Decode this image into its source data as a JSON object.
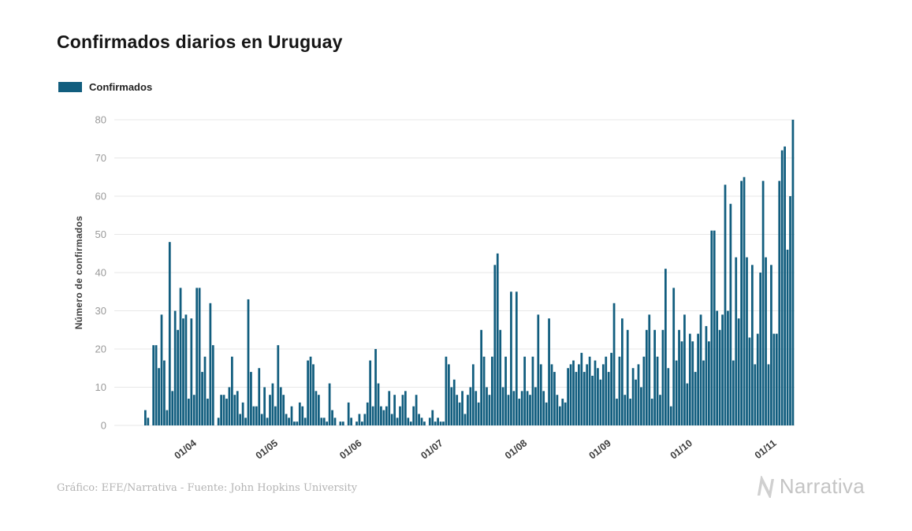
{
  "page": {
    "title": "Confirmados diarios en Uruguay",
    "footer_credit": "Gráfico: EFE/Narrativa - Fuente: John Hopkins University",
    "brand": "Narrativa"
  },
  "legend": {
    "label": "Confirmados",
    "color": "#115d7e"
  },
  "chart_data": {
    "type": "bar",
    "title": "Confirmados diarios en Uruguay",
    "series_name": "Confirmados",
    "ylabel": "Número de confirmados",
    "y_ticks": [
      0,
      10,
      20,
      30,
      40,
      50,
      60,
      70,
      80
    ],
    "ylim": [
      0,
      80
    ],
    "grid": "horizontal",
    "legend_position": "top-left",
    "bar_color": "#115d7e",
    "x_tick_labels": [
      "01/04",
      "01/05",
      "01/06",
      "01/07",
      "01/08",
      "01/09",
      "01/10",
      "01/11"
    ],
    "x_tick_indices": [
      19,
      49,
      80,
      110,
      141,
      172,
      202,
      233
    ],
    "values": [
      4,
      2,
      0,
      21,
      21,
      15,
      29,
      17,
      4,
      48,
      9,
      30,
      25,
      36,
      28,
      29,
      7,
      28,
      8,
      36,
      36,
      14,
      18,
      7,
      32,
      21,
      0,
      2,
      8,
      8,
      7,
      10,
      18,
      8,
      9,
      3,
      6,
      2,
      33,
      14,
      5,
      5,
      15,
      3,
      10,
      2,
      8,
      11,
      5,
      21,
      10,
      8,
      3,
      2,
      5,
      1,
      1,
      6,
      5,
      2,
      17,
      18,
      16,
      9,
      8,
      2,
      2,
      1,
      11,
      4,
      2,
      0,
      1,
      1,
      0,
      6,
      2,
      0,
      1,
      3,
      1,
      3,
      6,
      17,
      5,
      20,
      11,
      5,
      4,
      5,
      9,
      3,
      8,
      2,
      5,
      8,
      9,
      2,
      1,
      5,
      8,
      3,
      2,
      1,
      0,
      2,
      4,
      1,
      2,
      1,
      1,
      18,
      16,
      10,
      12,
      8,
      6,
      9,
      3,
      8,
      10,
      16,
      9,
      6,
      25,
      18,
      10,
      8,
      18,
      42,
      45,
      25,
      10,
      18,
      8,
      35,
      9,
      35,
      7,
      9,
      18,
      9,
      8,
      18,
      10,
      29,
      16,
      9,
      6,
      28,
      16,
      14,
      8,
      5,
      7,
      6,
      15,
      16,
      17,
      14,
      16,
      19,
      14,
      16,
      18,
      13,
      17,
      15,
      12,
      16,
      18,
      14,
      19,
      32,
      7,
      18,
      28,
      8,
      25,
      7,
      15,
      12,
      16,
      10,
      18,
      25,
      29,
      7,
      25,
      18,
      8,
      25,
      41,
      15,
      5,
      36,
      17,
      25,
      22,
      29,
      11,
      24,
      22,
      14,
      24,
      29,
      17,
      26,
      22,
      51,
      51,
      30,
      25,
      29,
      63,
      30,
      58,
      17,
      44,
      28,
      64,
      65,
      44,
      23,
      42,
      16,
      24,
      40,
      64,
      44,
      16,
      42,
      24,
      24,
      64,
      72,
      73,
      46,
      60,
      80
    ]
  }
}
